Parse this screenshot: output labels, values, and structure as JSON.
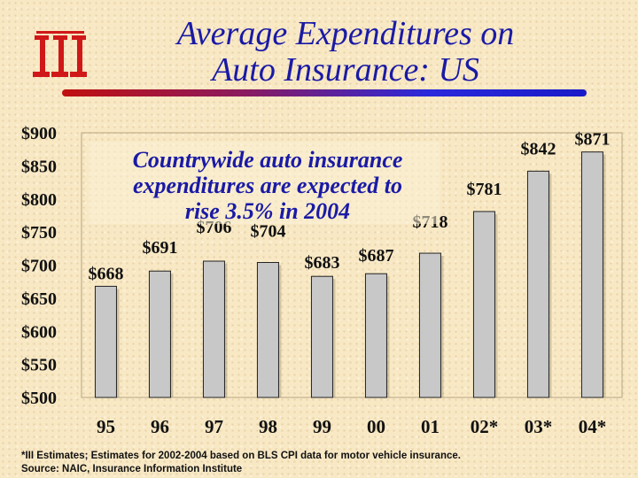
{
  "title_line1": "Average Expenditures on",
  "title_line2": "Auto Insurance: US",
  "logo_icon": "iii-logo-icon",
  "colors": {
    "title": "#1a1aa6",
    "annotation": "#1a1aa6",
    "bar": "#c8c8c8",
    "logo": "#d01818",
    "background": "#f8e8c4"
  },
  "chart_data": {
    "type": "bar",
    "categories": [
      "95",
      "96",
      "97",
      "98",
      "99",
      "00",
      "01",
      "02*",
      "03*",
      "04*"
    ],
    "values": [
      668,
      691,
      706,
      704,
      683,
      687,
      718,
      781,
      842,
      871
    ],
    "value_labels": [
      "$668",
      "$691",
      "$706",
      "$704",
      "$683",
      "$687",
      "$718",
      "$781",
      "$842",
      "$871"
    ],
    "y_ticks": [
      "$900",
      "$850",
      "$800",
      "$750",
      "$700",
      "$650",
      "$600",
      "$550",
      "$500"
    ],
    "ylim": [
      500,
      900
    ],
    "grid": false,
    "annotation": [
      "Countrywide auto insurance",
      "expenditures are expected to",
      "rise 3.5% in 2004"
    ]
  },
  "footnote_line1": "*III Estimates; Estimates for 2002-2004 based on BLS CPI data for motor vehicle insurance.",
  "footnote_line2": "Source:  NAIC, Insurance Information Institute"
}
